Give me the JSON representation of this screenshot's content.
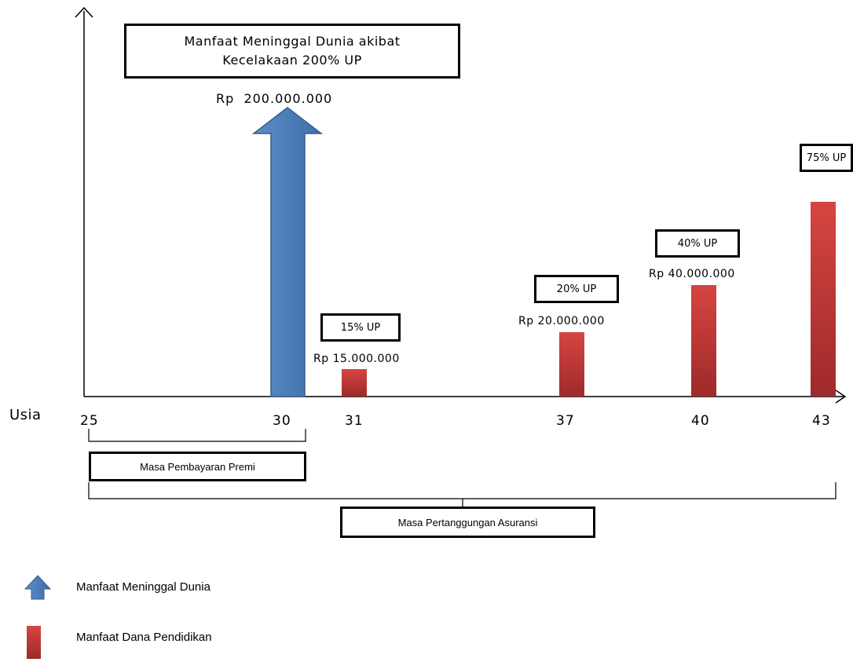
{
  "axis": {
    "x_label": "Usia",
    "ticks": [
      "25",
      "30",
      "31",
      "37",
      "40",
      "43"
    ]
  },
  "death_benefit": {
    "box_line1": "Manfaat Meninggal Dunia akibat",
    "box_line2": "Kecelakaan 200% UP",
    "amount": "Rp  200.000.000",
    "age": "30",
    "color": "#4F81BD"
  },
  "education_benefits": [
    {
      "age": "31",
      "percent": "15% UP",
      "amount": "Rp 15.000.000",
      "value": 15
    },
    {
      "age": "37",
      "percent": "20% UP",
      "amount": "Rp 20.000.000",
      "value": 20
    },
    {
      "age": "40",
      "percent": "40% UP",
      "amount": "Rp 40.000.000",
      "value": 40
    },
    {
      "age": "43",
      "percent": "75% UP",
      "amount": "",
      "value": 75
    }
  ],
  "education_color": "#C0392B",
  "periods": {
    "premium": {
      "label": "Masa Pembayaran Premi",
      "from": "25",
      "to": "30"
    },
    "coverage": {
      "label": "Masa Pertanggungan Asuransi",
      "from": "25",
      "to": "43"
    }
  },
  "legend": [
    {
      "icon": "blue-arrow-icon",
      "label": "Manfaat Meninggal Dunia"
    },
    {
      "icon": "red-bar-icon",
      "label": "Manfaat Dana Pendidikan"
    }
  ]
}
